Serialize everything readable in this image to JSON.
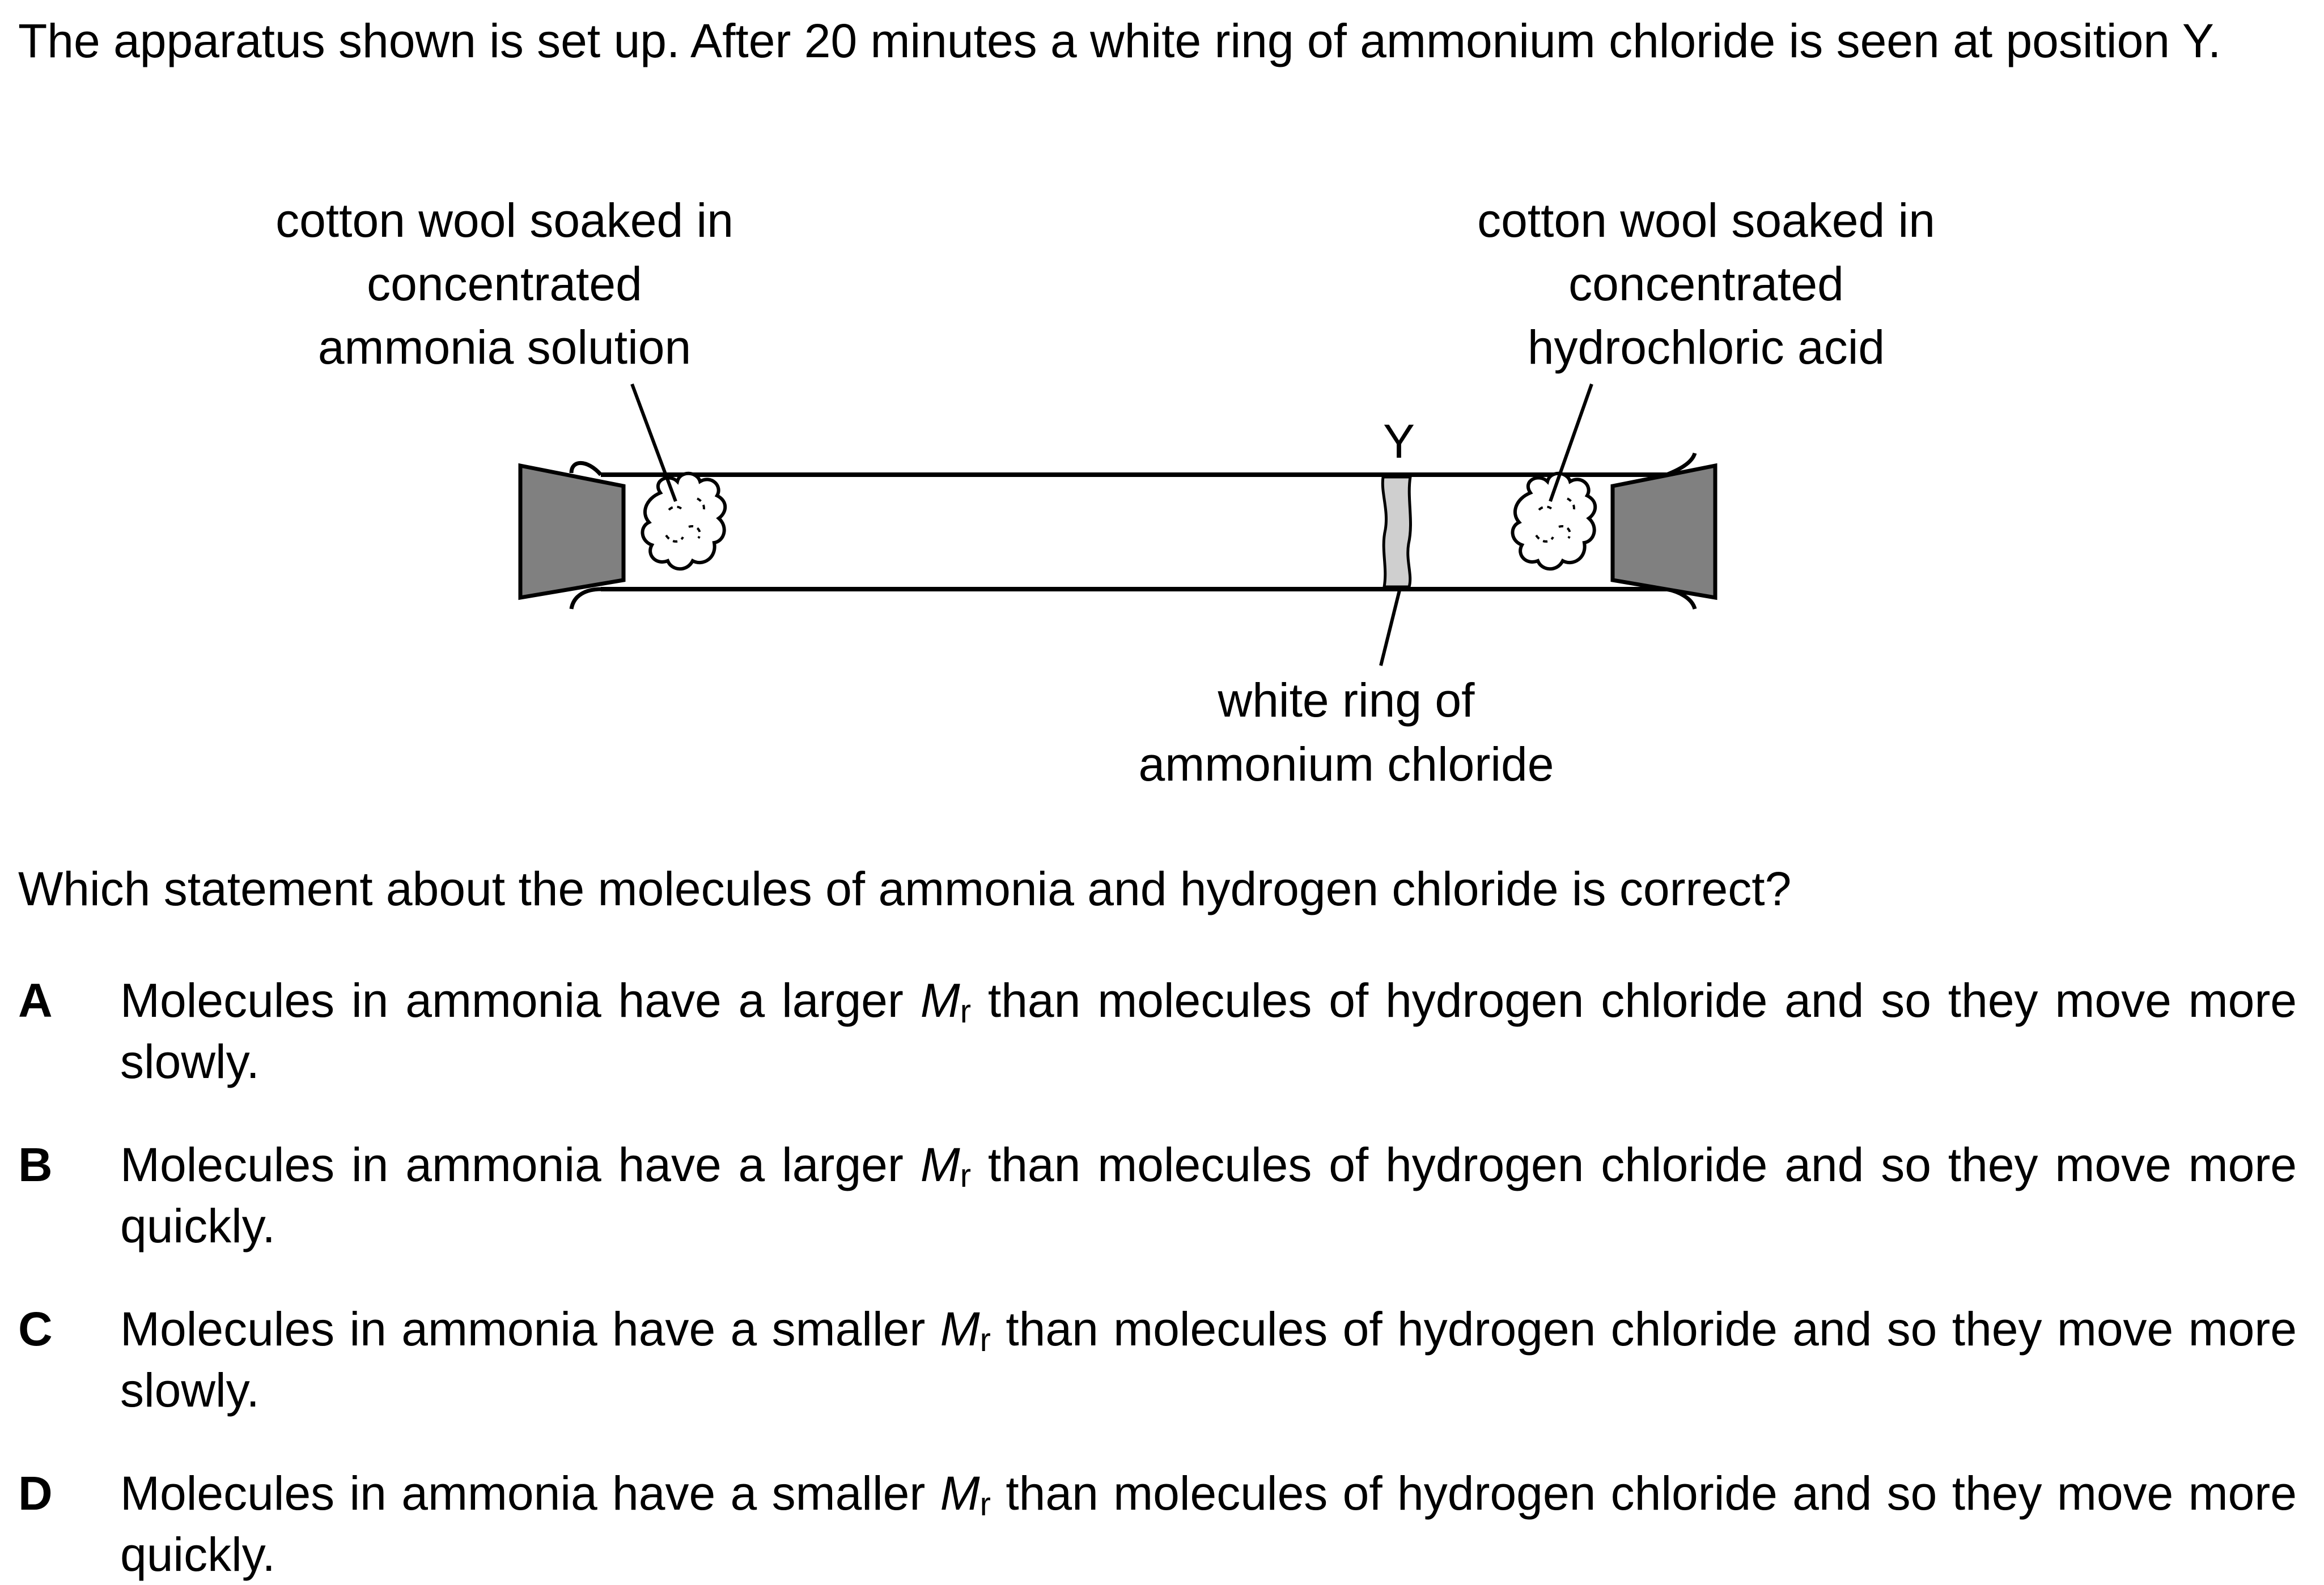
{
  "intro": {
    "text": "The apparatus shown is set up. After 20 minutes a white ring of ammonium chloride is seen at position Y."
  },
  "diagram": {
    "left_label": [
      "cotton wool soaked in",
      "concentrated",
      "ammonia solution"
    ],
    "right_label": [
      "cotton wool soaked in",
      "concentrated",
      "hydrochloric acid"
    ],
    "position_label": "Y",
    "ring_label": [
      "white ring of",
      "ammonium chloride"
    ]
  },
  "question": {
    "text": "Which statement about the molecules of ammonia and hydrogen chloride is correct?"
  },
  "options": [
    {
      "letter": "A",
      "before": "Molecules in ammonia have a larger ",
      "symbol": "M",
      "subscript": "r",
      "after": " than molecules of hydrogen chloride and so they move more slowly."
    },
    {
      "letter": "B",
      "before": "Molecules in ammonia have a larger ",
      "symbol": "M",
      "subscript": "r",
      "after": " than molecules of hydrogen chloride and so they move more quickly."
    },
    {
      "letter": "C",
      "before": "Molecules in ammonia have a smaller ",
      "symbol": "M",
      "subscript": "r",
      "after": " than molecules of hydrogen chloride and so they move more slowly."
    },
    {
      "letter": "D",
      "before": "Molecules in ammonia have a smaller ",
      "symbol": "M",
      "subscript": "r",
      "after": " than molecules of hydrogen chloride and so they move more quickly."
    }
  ]
}
